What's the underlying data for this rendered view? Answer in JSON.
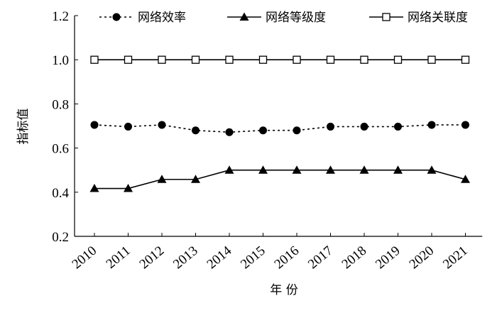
{
  "chart_data": {
    "type": "line",
    "x_label": "年 份",
    "y_label": "指标值",
    "categories": [
      "2010",
      "2011",
      "2012",
      "2013",
      "2014",
      "2015",
      "2016",
      "2017",
      "2018",
      "2019",
      "2020",
      "2021"
    ],
    "series": [
      {
        "name": "网络效率",
        "color": "#000000",
        "marker": "circle",
        "dashed": true,
        "values": [
          0.705,
          0.697,
          0.705,
          0.68,
          0.672,
          0.68,
          0.68,
          0.697,
          0.697,
          0.697,
          0.705,
          0.705
        ]
      },
      {
        "name": "网络等级度",
        "color": "#000000",
        "marker": "triangle",
        "dashed": false,
        "values": [
          0.417,
          0.417,
          0.458,
          0.458,
          0.5,
          0.5,
          0.5,
          0.5,
          0.5,
          0.5,
          0.5,
          0.458
        ]
      },
      {
        "name": "网络关联度",
        "color": "#000000",
        "marker": "square-open",
        "dashed": false,
        "values": [
          1,
          1,
          1,
          1,
          1,
          1,
          1,
          1,
          1,
          1,
          1,
          1
        ]
      }
    ],
    "ylim": [
      0.2,
      1.2
    ],
    "yticks": [
      0.2,
      0.4,
      0.6,
      0.8,
      {
        "value": 1,
        "label": "1.0"
      },
      1.2
    ],
    "grid": false,
    "legend": "top"
  }
}
